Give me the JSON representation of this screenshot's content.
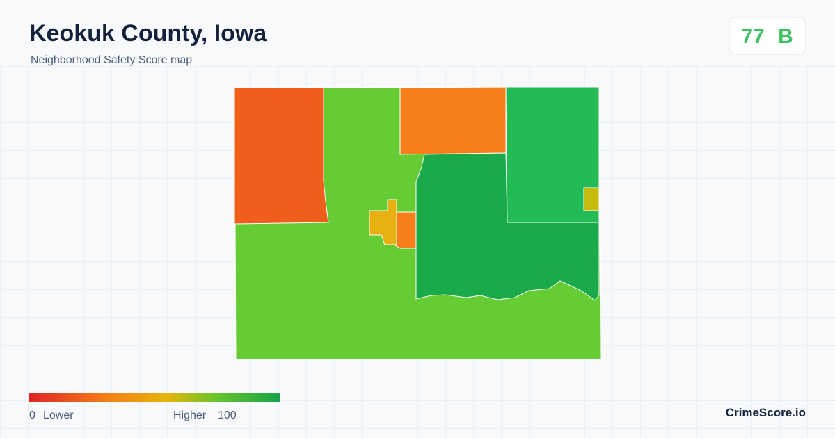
{
  "header": {
    "title": "Keokuk County, Iowa",
    "subtitle": "Neighborhood Safety Score map"
  },
  "score": {
    "value": 77,
    "grade": "B"
  },
  "legend": {
    "min": 0,
    "min_label": "Lower",
    "max_label": "Higher",
    "max": 100
  },
  "brand": "CrimeScore.io"
}
